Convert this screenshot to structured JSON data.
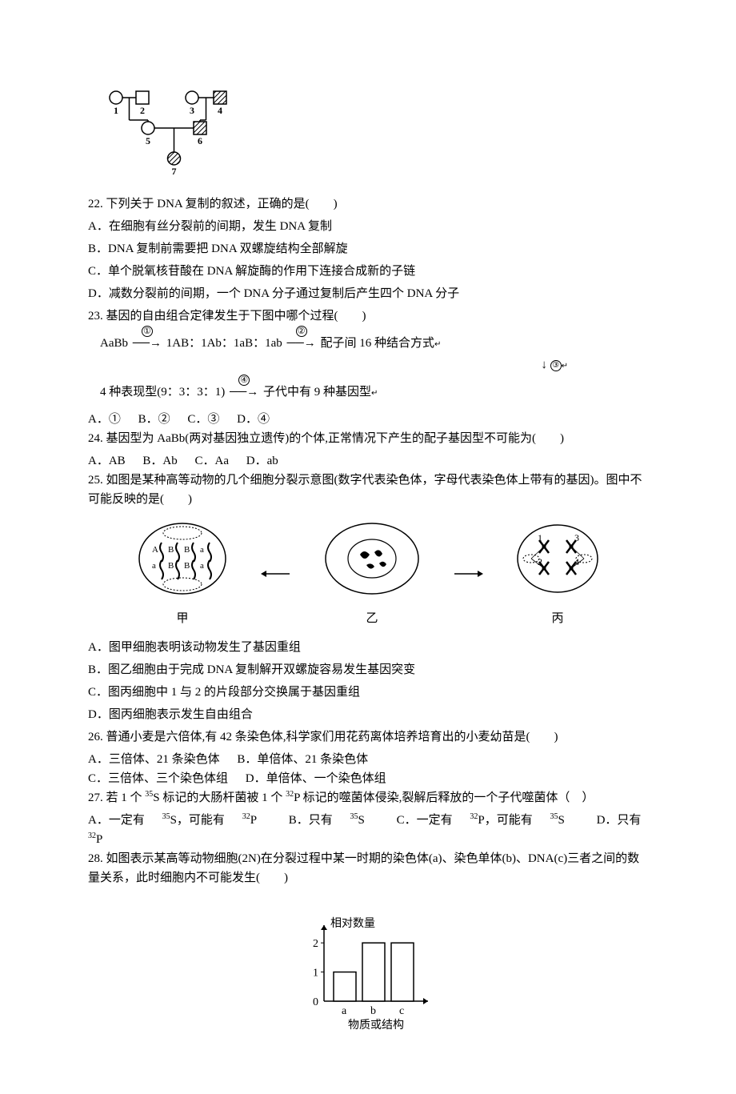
{
  "pedigree": {
    "stroke": "#000000",
    "bg": "#ffffff",
    "hatch": "#000000",
    "labels": [
      "1",
      "2",
      "3",
      "4",
      "5",
      "6",
      "7"
    ]
  },
  "q22": {
    "stem": "22.  下列关于 DNA 复制的叙述，正确的是(　　)",
    "A": "A．在细胞有丝分裂前的间期，发生 DNA 复制",
    "B": "B．DNA 复制前需要把 DNA 双螺旋结构全部解旋",
    "C": "C．单个脱氧核苷酸在 DNA 解旋酶的作用下连接合成新的子链",
    "D": "D．减数分裂前的间期，一个 DNA 分子通过复制后产生四个 DNA 分子"
  },
  "q23": {
    "stem": "23.  基因的自由组合定律发生于下图中哪个过程(　　)",
    "flow": {
      "start": "AaBb",
      "step1_label": "①",
      "mid1": "1AB：1Ab：1aB：1ab",
      "step2_label": "②",
      "mid2": "配子间 16 种结合方式",
      "step3_label": "③",
      "bottom_left": "4 种表现型(9：3：3：1)",
      "step4_label": "④",
      "bottom_right": "子代中有 9 种基因型",
      "arrow_down_sym": "↓",
      "small_arrow_suffix": "↵"
    },
    "optA": "A．①",
    "optB": "B．②",
    "optC": "C．③",
    "optD": "D．④"
  },
  "q24": {
    "stem": "24.  基因型为 AaBb(两对基因独立遗传)的个体,正常情况下产生的配子基因型不可能为(　　)",
    "A": "A．AB",
    "B": "B．Ab",
    "C": "C．Aa",
    "D": "D．ab"
  },
  "q25": {
    "stem": "25.  如图是某种高等动物的几个细胞分裂示意图(数字代表染色体，字母代表染色体上带有的基因)。图中不可能反映的是(　　)",
    "cells": {
      "jia_label": "甲",
      "yi_label": "乙",
      "bing_label": "丙",
      "jia_letters_top": [
        "A",
        "B",
        "B",
        "a"
      ],
      "jia_letters_bot": [
        "a",
        "B",
        "B",
        "a"
      ],
      "bing_nums": [
        "1",
        "3",
        "2",
        "4"
      ],
      "stroke": "#000000"
    },
    "A": "A．图甲细胞表明该动物发生了基因重组",
    "B": "B．图乙细胞由于完成 DNA 复制解开双螺旋容易发生基因突变",
    "C": "C．图丙细胞中 1 与 2 的片段部分交换属于基因重组",
    "D": "D．图丙细胞表示发生自由组合"
  },
  "q26": {
    "stem": "26.  普通小麦是六倍体,有 42 条染色体,科学家们用花药离体培养培育出的小麦幼苗是(　　)",
    "A": "A．三倍体、21 条染色体",
    "B": "B．单倍体、21 条染色体",
    "C": "C．三倍体、三个染色体组",
    "D": "D．单倍体、一个染色体组"
  },
  "q27": {
    "stem_p1": "27.  若 1 个 ",
    "s35": "35",
    "stem_p2": "S 标记的大肠杆菌被 1 个 ",
    "p32": "32",
    "stem_p3": "P 标记的噬菌体侵染,裂解后释放的一个子代噬菌体（　）",
    "A_p1": "A．一定有 ",
    "A_p2": "S，可能有 ",
    "A_p3": "P",
    "B_p1": "B．只有 ",
    "B_p2": "S",
    "C_p1": "C．一定有 ",
    "C_p2": "P，可能有 ",
    "C_p3": "S",
    "D_p1": "D．只有 ",
    "D_p2": "P"
  },
  "q28": {
    "stem": "28.  如图表示某高等动物细胞(2N)在分裂过程中某一时期的染色体(a)、染色单体(b)、DNA(c)三者之间的数量关系，此时细胞内不可能发生(　　)",
    "chart": {
      "ylabel": "相对数量",
      "xlabel": "物质或结构",
      "yticks": [
        "0",
        "1",
        "2"
      ],
      "categories": [
        "a",
        "b",
        "c"
      ],
      "values": [
        1,
        2,
        2
      ],
      "ymax": 2.4,
      "bar_fill": "#ffffff",
      "bar_stroke": "#000000",
      "axis_stroke": "#000000",
      "font_size": 14
    }
  }
}
